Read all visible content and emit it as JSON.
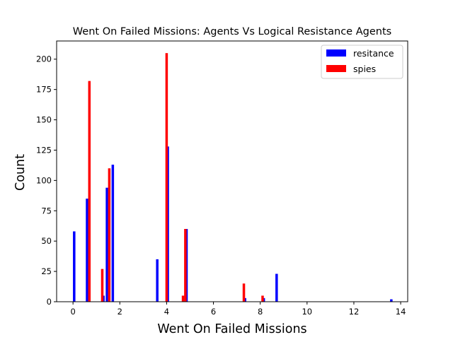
{
  "chart_data": {
    "type": "bar",
    "title": "Went On Failed Missions: Agents Vs Logical Resistance Agents",
    "xlabel": "Went On Failed Missions",
    "ylabel": "Count",
    "xlim": [
      -0.7,
      14.3
    ],
    "ylim": [
      0,
      215
    ],
    "xticks": [
      0,
      2,
      4,
      6,
      8,
      10,
      12,
      14
    ],
    "yticks": [
      0,
      25,
      50,
      75,
      100,
      125,
      150,
      175,
      200
    ],
    "grid": false,
    "legend_position": "top-right",
    "series": [
      {
        "name": "resitance",
        "color": "#0000ff",
        "points": [
          {
            "x": 0.05,
            "y": 58
          },
          {
            "x": 0.6,
            "y": 85
          },
          {
            "x": 1.3,
            "y": 5
          },
          {
            "x": 1.45,
            "y": 94
          },
          {
            "x": 1.7,
            "y": 113
          },
          {
            "x": 3.6,
            "y": 35
          },
          {
            "x": 4.05,
            "y": 128
          },
          {
            "x": 4.85,
            "y": 60
          },
          {
            "x": 7.35,
            "y": 3
          },
          {
            "x": 8.15,
            "y": 3
          },
          {
            "x": 8.7,
            "y": 23
          },
          {
            "x": 13.6,
            "y": 2
          }
        ]
      },
      {
        "name": "spies",
        "color": "#ff0000",
        "points": [
          {
            "x": 0.7,
            "y": 182
          },
          {
            "x": 1.25,
            "y": 27
          },
          {
            "x": 1.55,
            "y": 110
          },
          {
            "x": 4.0,
            "y": 205
          },
          {
            "x": 4.7,
            "y": 5
          },
          {
            "x": 4.8,
            "y": 60
          },
          {
            "x": 7.3,
            "y": 15
          },
          {
            "x": 8.1,
            "y": 5
          }
        ]
      }
    ]
  }
}
